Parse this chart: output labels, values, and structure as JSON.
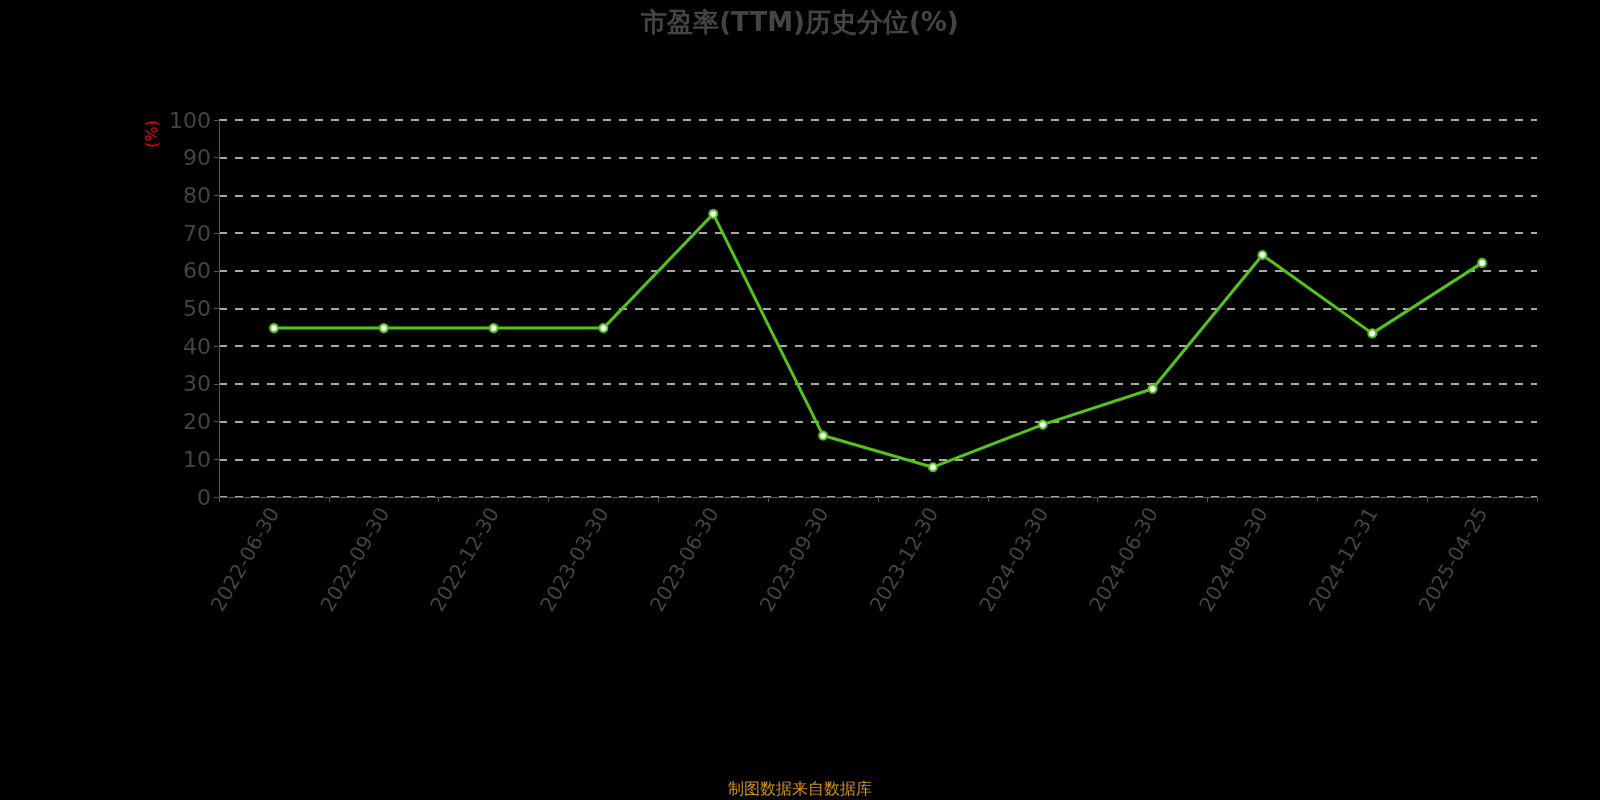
{
  "chart_data": {
    "type": "line",
    "title": "市盈率(TTM)历史分位(%)",
    "ylabel": "(%)",
    "categories": [
      "2022-06-30",
      "2022-09-30",
      "2022-12-30",
      "2023-03-30",
      "2023-06-30",
      "2023-09-30",
      "2023-12-30",
      "2024-03-30",
      "2024-06-30",
      "2024-09-30",
      "2024-12-31",
      "2025-04-25"
    ],
    "series": [
      {
        "color": "#52c41a",
        "values": [
          44.8,
          44.8,
          44.8,
          44.8,
          75.1,
          16.3,
          7.9,
          19.2,
          28.7,
          64.2,
          43.4,
          62.1
        ]
      }
    ],
    "ylim": [
      0,
      100
    ],
    "yticks": [
      0,
      10,
      20,
      30,
      40,
      50,
      60,
      70,
      80,
      90,
      100
    ],
    "grid": "y",
    "marker": "circle",
    "line_style": "solid",
    "annotations": [
      "制图数据来自数据库"
    ]
  }
}
